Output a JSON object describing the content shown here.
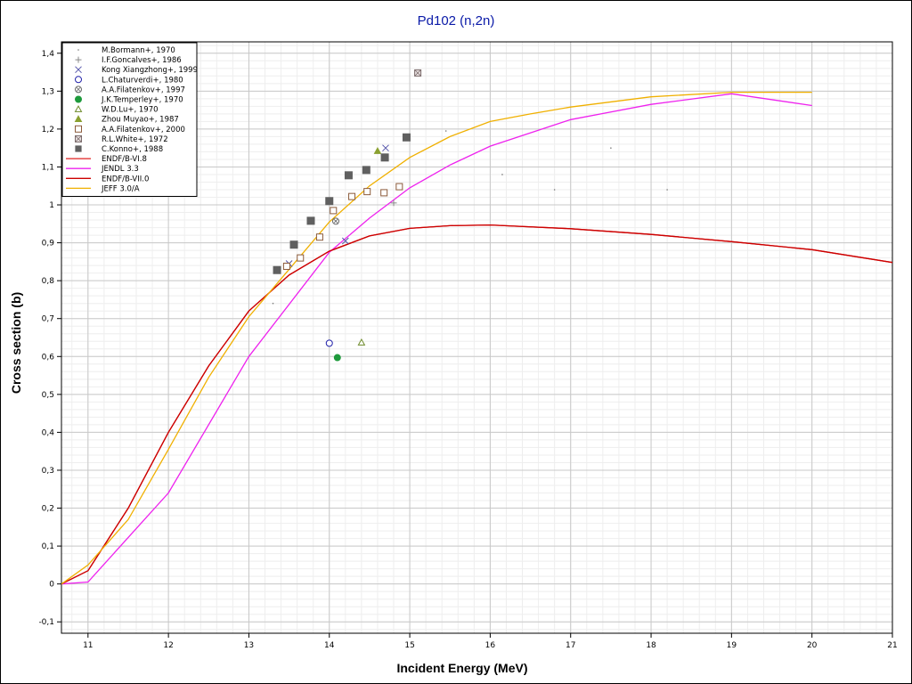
{
  "chart_data": {
    "type": "scatter",
    "title": "Pd102 (n,2n)",
    "xlabel": "Incident Energy (MeV)",
    "ylabel": "Cross section (b)",
    "xlim": [
      10.67,
      21
    ],
    "ylim": [
      -0.13,
      1.43
    ],
    "x_ticks": [
      11,
      12,
      13,
      14,
      15,
      16,
      17,
      18,
      19,
      20,
      21
    ],
    "y_ticks": [
      -0.1,
      0,
      0.1,
      0.2,
      0.3,
      0.4,
      0.5,
      0.6,
      0.7,
      0.8,
      0.9,
      1,
      1.1,
      1.2,
      1.3,
      1.4
    ],
    "decimal_separator": ",",
    "grid": true,
    "legend_position": "top-left",
    "series": [
      {
        "name": "M.Bormann+, 1970",
        "kind": "points",
        "marker": "dot",
        "color": "#777777",
        "x": [
          13.3,
          14.1,
          15.45,
          16.15,
          16.8,
          17.5,
          18.2
        ],
        "y": [
          0.74,
          0.95,
          1.195,
          1.08,
          1.04,
          1.15,
          1.04
        ]
      },
      {
        "name": "I.F.Goncalves+, 1986",
        "kind": "points",
        "marker": "plus",
        "color": "#888888",
        "x": [
          14.8
        ],
        "y": [
          1.005
        ]
      },
      {
        "name": "Kong Xiangzhong+, 1999",
        "kind": "points",
        "marker": "x",
        "color": "#5555aa",
        "x": [
          13.5,
          14.2,
          14.7
        ],
        "y": [
          0.845,
          0.905,
          1.15
        ]
      },
      {
        "name": "L.Chaturverdi+, 1980",
        "kind": "points",
        "marker": "circle-open",
        "color": "#2222aa",
        "x": [
          14.0
        ],
        "y": [
          0.635
        ]
      },
      {
        "name": "A.A.Filatenkov+, 1997",
        "kind": "points",
        "marker": "circle-hatched",
        "color": "#666666",
        "x": [
          14.08
        ],
        "y": [
          0.957
        ]
      },
      {
        "name": "J.K.Temperley+, 1970",
        "kind": "points",
        "marker": "circle-filled",
        "color": "#1e9a3c",
        "x": [
          14.1
        ],
        "y": [
          0.597
        ]
      },
      {
        "name": "W.D.Lu+, 1970",
        "kind": "points",
        "marker": "triangle-open",
        "color": "#6d8a2a",
        "x": [
          14.4
        ],
        "y": [
          0.637
        ]
      },
      {
        "name": "Zhou Muyao+, 1987",
        "kind": "points",
        "marker": "triangle-filled",
        "color": "#8aa030",
        "x": [
          14.6
        ],
        "y": [
          1.142
        ]
      },
      {
        "name": "A.A.Filatenkov+, 2000",
        "kind": "points",
        "marker": "square-open",
        "color": "#8b5a3a",
        "x": [
          13.47,
          13.64,
          13.88,
          14.05,
          14.28,
          14.47,
          14.68,
          14.87
        ],
        "y": [
          0.838,
          0.86,
          0.915,
          0.985,
          1.022,
          1.035,
          1.032,
          1.048
        ]
      },
      {
        "name": "R.L.White+, 1972",
        "kind": "points",
        "marker": "square-hatched",
        "color": "#7a6a6a",
        "x": [
          15.1
        ],
        "y": [
          1.348
        ]
      },
      {
        "name": "C.Konno+, 1988",
        "kind": "points",
        "marker": "square-filled",
        "color": "#606060",
        "x": [
          13.35,
          13.56,
          13.77,
          14.0,
          14.24,
          14.46,
          14.69,
          14.96
        ],
        "y": [
          0.828,
          0.895,
          0.958,
          1.01,
          1.078,
          1.092,
          1.125,
          1.178
        ]
      },
      {
        "name": "ENDF/B-VI.8",
        "kind": "line",
        "color": "#e02020",
        "x": [
          10.67,
          11.0,
          11.5,
          12.0,
          12.5,
          13.0,
          13.5,
          14.0,
          14.5,
          15.0,
          15.5,
          16.0,
          17.0,
          18.0,
          19.0,
          20.0,
          21.0
        ],
        "y": [
          0.0,
          0.035,
          0.2,
          0.4,
          0.575,
          0.72,
          0.815,
          0.878,
          0.918,
          0.938,
          0.945,
          0.947,
          0.937,
          0.922,
          0.903,
          0.882,
          0.848
        ]
      },
      {
        "name": "JENDL 3.3",
        "kind": "line",
        "color": "#ee22ee",
        "x": [
          10.67,
          11.0,
          12.0,
          13.0,
          14.0,
          14.5,
          15.0,
          15.5,
          16.0,
          17.0,
          18.0,
          19.0,
          20.0
        ],
        "y": [
          0.0,
          0.005,
          0.24,
          0.6,
          0.875,
          0.965,
          1.045,
          1.105,
          1.155,
          1.225,
          1.265,
          1.293,
          1.262
        ]
      },
      {
        "name": "ENDF/B-VII.0",
        "kind": "line",
        "color": "#cc0000",
        "x": [
          10.67,
          11.0,
          11.5,
          12.0,
          12.5,
          13.0,
          13.5,
          14.0,
          14.5,
          15.0,
          15.5,
          16.0,
          17.0,
          18.0,
          19.0,
          20.0,
          21.0
        ],
        "y": [
          0.0,
          0.035,
          0.2,
          0.4,
          0.575,
          0.72,
          0.815,
          0.878,
          0.918,
          0.938,
          0.945,
          0.947,
          0.937,
          0.922,
          0.903,
          0.882,
          0.848
        ]
      },
      {
        "name": "JEFF 3.0/A",
        "kind": "line",
        "color": "#f0b000",
        "x": [
          10.67,
          11.0,
          11.5,
          12.0,
          12.5,
          13.0,
          13.5,
          14.0,
          14.5,
          15.0,
          15.5,
          16.0,
          16.5,
          17.0,
          18.0,
          19.0,
          20.0
        ],
        "y": [
          0.0,
          0.05,
          0.17,
          0.355,
          0.545,
          0.705,
          0.83,
          0.955,
          1.05,
          1.125,
          1.18,
          1.22,
          1.24,
          1.258,
          1.285,
          1.297,
          1.297
        ]
      }
    ]
  }
}
